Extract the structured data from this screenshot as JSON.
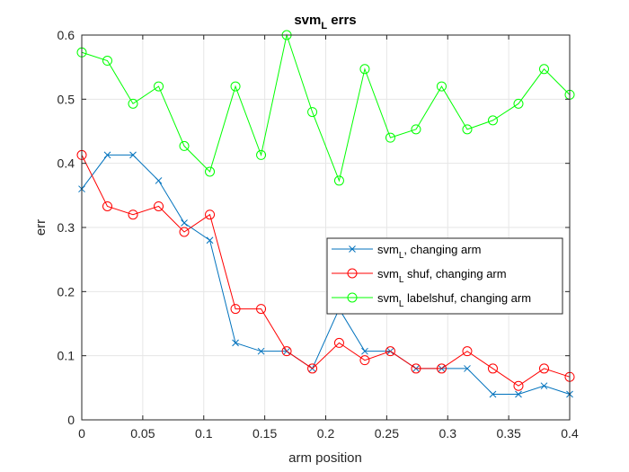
{
  "chart_data": {
    "type": "line",
    "title": "svm_L errs",
    "xlabel": "arm position",
    "ylabel": "err",
    "xlim": [
      0,
      0.4
    ],
    "ylim": [
      0,
      0.6
    ],
    "xticks": [
      "0",
      "0.05",
      "0.1",
      "0.15",
      "0.2",
      "0.25",
      "0.3",
      "0.35",
      "0.4"
    ],
    "yticks": [
      "0",
      "0.1",
      "0.2",
      "0.3",
      "0.4",
      "0.5",
      "0.6"
    ],
    "grid": true,
    "legend_position": "center-right",
    "x": [
      0,
      0.021,
      0.042,
      0.063,
      0.084,
      0.105,
      0.126,
      0.147,
      0.168,
      0.189,
      0.211,
      0.232,
      0.253,
      0.274,
      0.295,
      0.316,
      0.337,
      0.358,
      0.379,
      0.4
    ],
    "series": [
      {
        "name": "svm_L, changing arm",
        "color": "#0072BD",
        "marker": "x",
        "values": [
          0.36,
          0.413,
          0.413,
          0.373,
          0.307,
          0.28,
          0.12,
          0.107,
          0.107,
          0.08,
          0.173,
          0.107,
          0.107,
          0.08,
          0.08,
          0.08,
          0.04,
          0.04,
          0.053,
          0.04
        ]
      },
      {
        "name": "svm_L shuf, changing arm",
        "color": "#FF0000",
        "marker": "o",
        "values": [
          0.413,
          0.333,
          0.32,
          0.333,
          0.293,
          0.32,
          0.173,
          0.173,
          0.107,
          0.08,
          0.12,
          0.093,
          0.107,
          0.08,
          0.08,
          0.107,
          0.08,
          0.053,
          0.08,
          0.067
        ]
      },
      {
        "name": "svm_L labelshuf, changing arm",
        "color": "#00FF00",
        "marker": "o",
        "values": [
          0.573,
          0.56,
          0.493,
          0.52,
          0.427,
          0.387,
          0.52,
          0.413,
          0.6,
          0.48,
          0.373,
          0.547,
          0.44,
          0.453,
          0.52,
          0.453,
          0.467,
          0.493,
          0.547,
          0.507
        ]
      }
    ],
    "legend": [
      {
        "base": "svm",
        "sub": "L",
        "rest": ", changing arm"
      },
      {
        "base": "svm",
        "sub": "L",
        "rest": " shuf, changing arm"
      },
      {
        "base": "svm",
        "sub": "L",
        "rest": " labelshuf, changing arm"
      }
    ],
    "title_parts": {
      "base": "svm",
      "sub": "L",
      "rest": " errs"
    }
  }
}
